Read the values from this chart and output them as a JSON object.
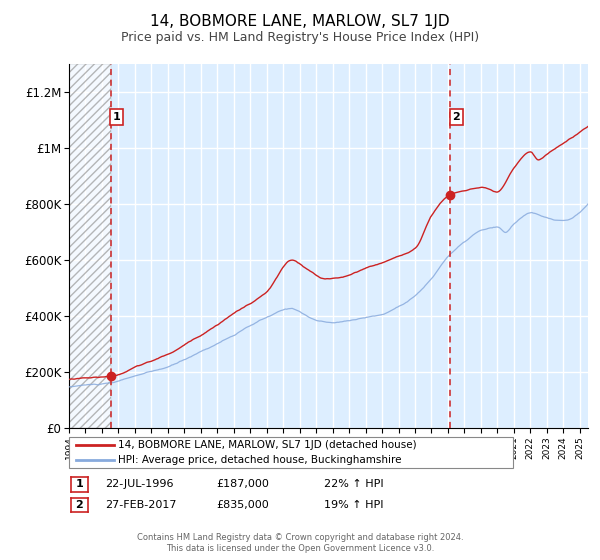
{
  "title": "14, BOBMORE LANE, MARLOW, SL7 1JD",
  "subtitle": "Price paid vs. HM Land Registry's House Price Index (HPI)",
  "ylim": [
    0,
    1300000
  ],
  "xlim_start": 1994.0,
  "xlim_end": 2025.5,
  "yticks": [
    0,
    200000,
    400000,
    600000,
    800000,
    1000000,
    1200000
  ],
  "ytick_labels": [
    "£0",
    "£200K",
    "£400K",
    "£600K",
    "£800K",
    "£1M",
    "£1.2M"
  ],
  "sale1_date": 1996.55,
  "sale1_price": 187000,
  "sale1_label": "1",
  "sale2_date": 2017.15,
  "sale2_price": 835000,
  "sale2_label": "2",
  "legend_line1": "14, BOBMORE LANE, MARLOW, SL7 1JD (detached house)",
  "legend_line2": "HPI: Average price, detached house, Buckinghamshire",
  "table_row1": [
    "1",
    "22-JUL-1996",
    "£187,000",
    "22% ↑ HPI"
  ],
  "table_row2": [
    "2",
    "27-FEB-2017",
    "£835,000",
    "19% ↑ HPI"
  ],
  "footer1": "Contains HM Land Registry data © Crown copyright and database right 2024.",
  "footer2": "This data is licensed under the Open Government Licence v3.0.",
  "bg_color": "#ddeeff",
  "red_line_color": "#cc2222",
  "blue_line_color": "#88aadd",
  "grid_color": "#ffffff",
  "title_fontsize": 11,
  "subtitle_fontsize": 9
}
